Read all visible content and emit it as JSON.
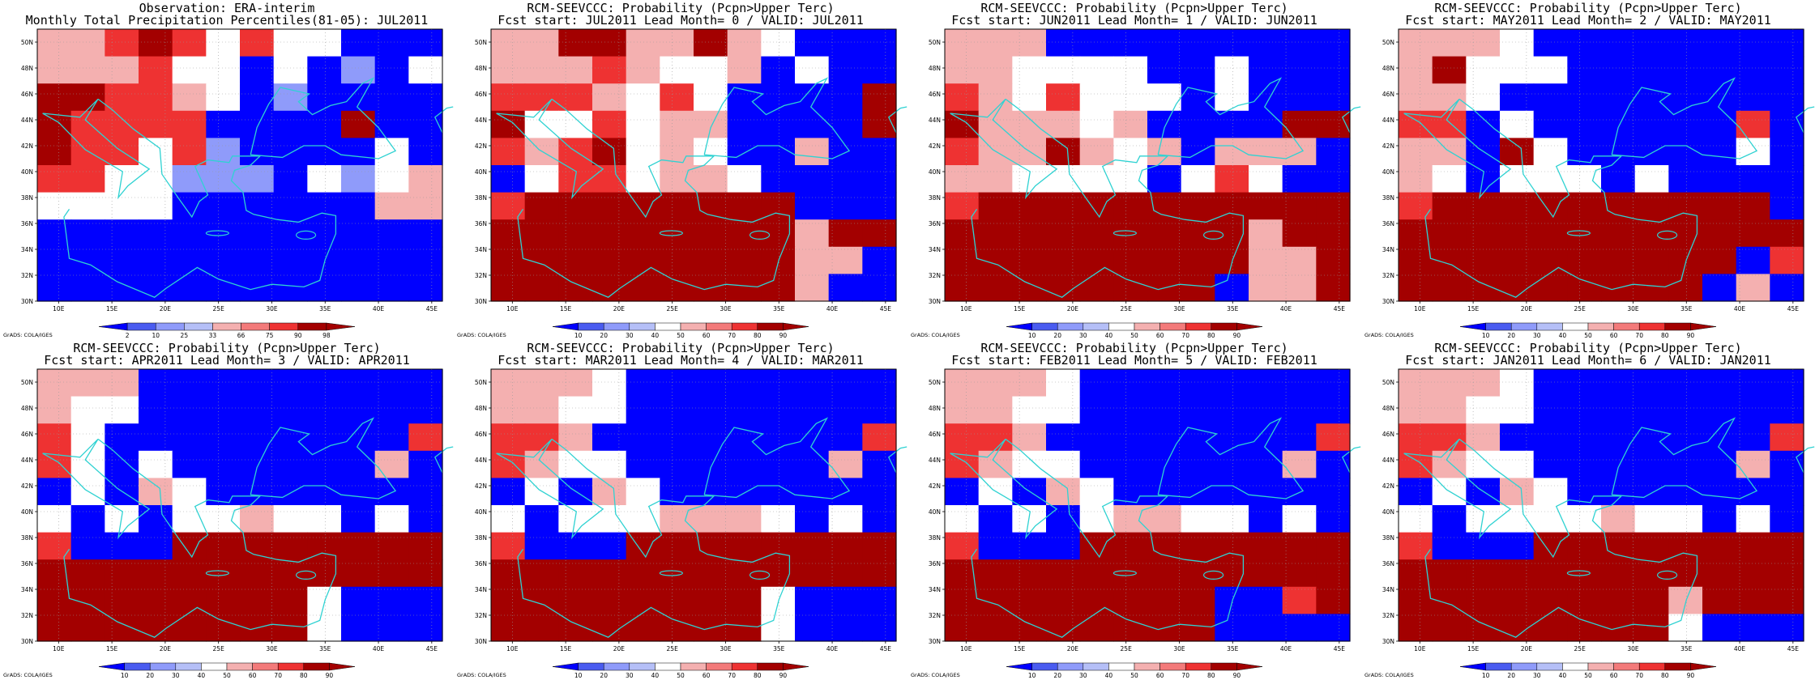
{
  "credit": "GrADS: COLA/IGES",
  "colors": {
    "deep_blue": "#0000ff",
    "mid_blue": "#4a5cf0",
    "light_blue": "#8f9bfa",
    "pale_blue": "#b5bff7",
    "white": "#ffffff",
    "pale_red": "#f4b0b0",
    "light_red": "#f37a7a",
    "red": "#ee3232",
    "dark_red": "#a30000",
    "coast": "#2fd2d2"
  },
  "lon_ticks": [
    "10E",
    "15E",
    "20E",
    "25E",
    "30E",
    "35E",
    "40E",
    "45E"
  ],
  "lat_ticks": [
    "50N",
    "48N",
    "46N",
    "44N",
    "42N",
    "40N",
    "38N",
    "36N",
    "34N",
    "32N",
    "30N"
  ],
  "panels": [
    {
      "title1": "Observation: ERA-interim",
      "title2": "Monthly Total Precipitation Percentiles(81-05): JUL2011",
      "cbar": [
        "2",
        "10",
        "25",
        "33",
        "66",
        "75",
        "90",
        "98"
      ],
      "grid": [
        "hhrdrwrwwbbb",
        "hhhrwwbwbpbw",
        "ddrrhwbpbbbb",
        "drrrrbbbbdbb",
        "drrwrpbbbbwb",
        "rrwwpppbwpwh",
        "wwwwbbbbbbhh",
        "bbbbbbbbbbbb",
        "bbbbbbbbbbbb",
        "bbbbbbbbbbbb"
      ]
    },
    {
      "title1": "RCM-SEEVCCC: Probability (Pcpn>Upper Terc)",
      "title2": "Fcst start: JUL2011  Lead Month= 0 / VALID: JUL2011",
      "cbar": [
        "10",
        "20",
        "30",
        "40",
        "50",
        "60",
        "70",
        "80",
        "90"
      ],
      "grid": [
        "hhdDhhdhwbbb",
        "hhhrhwwhbwbb",
        "rrrhwrwbbbbD",
        "Dwwrwhhbbbbd",
        "rhrdwhwbbhbb",
        "bwrrwhhwbbbb",
        "rDDDDDDDDbbb",
        "DDDDDDDDDhDD",
        "DDDDDDDDDhhb",
        "DDDDDDDDDhbb"
      ]
    },
    {
      "title1": "RCM-SEEVCCC: Probability (Pcpn>Upper Terc)",
      "title2": "Fcst start: JUN2011  Lead Month= 1 / VALID: JUN2011",
      "cbar": [
        "10",
        "20",
        "30",
        "40",
        "50",
        "60",
        "70",
        "80",
        "90"
      ],
      "grid": [
        "hhhbbbbbbbbb",
        "hhwwwwbbwbbb",
        "rhwrwwwbwbbb",
        "DhhhwhbbbbDd",
        "rhhDhwhbhhhb",
        "hhwwwwbwrwbb",
        "rDDDDDDDDDDD",
        "DDDDDDDDDhDD",
        "DDDDDDDDDhhD",
        "DDDDDDDDbhhD"
      ]
    },
    {
      "title1": "RCM-SEEVCCC: Probability (Pcpn>Upper Terc)",
      "title2": "Fcst start: MAY2011  Lead Month= 2 / VALID: MAY2011",
      "cbar": [
        "10",
        "20",
        "30",
        "40",
        "50",
        "60",
        "70",
        "80",
        "90"
      ],
      "grid": [
        "hhhwbbbbbbbb",
        "hdwwwbbbbbbb",
        "hhwbbbbbbbbb",
        "rrbwbbbbbbrb",
        "hhbdwbbbbbwb",
        "hwbwwwbwbbbb",
        "rDDDDDDDDDDb",
        "DDDDDDDDDDDD",
        "DDDDDDDDDDbr",
        "DDDDDDDDDbhb"
      ]
    },
    {
      "title1": "RCM-SEEVCCC: Probability (Pcpn>Upper Terc)",
      "title2": "Fcst start: APR2011  Lead Month= 3 / VALID: APR2011",
      "cbar": [
        "10",
        "20",
        "30",
        "40",
        "50",
        "60",
        "70",
        "80",
        "90"
      ],
      "grid": [
        "hhhbbbbbbbbb",
        "hwwbbbbbbbbb",
        "rwbbbbbbbbbr",
        "rwbwbbbbbbhb",
        "bwbhwbbbbbbb",
        "wbwbwwhwwbwb",
        "rbbbDDDDDDDD",
        "DDDDDDDDDDDD",
        "DDDDDDDDwbbb",
        "DDDDDDDDwbbb"
      ]
    },
    {
      "title1": "RCM-SEEVCCC: Probability (Pcpn>Upper Terc)",
      "title2": "Fcst start: MAR2011  Lead Month= 4 / VALID: MAR2011",
      "cbar": [
        "10",
        "20",
        "30",
        "40",
        "50",
        "60",
        "70",
        "80",
        "90"
      ],
      "grid": [
        "hhhwbbbbbbbb",
        "hhwwbbbbbbbb",
        "rrhbbbbbbbbr",
        "rhwwbbbbbbhb",
        "bwbhwbbbbbbb",
        "wbwwwhhhwbwb",
        "rbbbDDDDDDDD",
        "DDDDDDDDDDDD",
        "DDDDDDDDwbbb",
        "DDDDDDDDwbbb"
      ]
    },
    {
      "title1": "RCM-SEEVCCC: Probability (Pcpn>Upper Terc)",
      "title2": "Fcst start: FEB2011  Lead Month= 5 / VALID: FEB2011",
      "cbar": [
        "10",
        "20",
        "30",
        "40",
        "50",
        "60",
        "70",
        "80",
        "90"
      ],
      "grid": [
        "hhhwbbbbbbbb",
        "hhwwbbbbbbbb",
        "rrhbbbbbbbbr",
        "rhwwbbbbbbhb",
        "bwbhwbbbbbbb",
        "wbwbwhhwwbwb",
        "rbbbDDDDDDDD",
        "DDDDDDDDDDDD",
        "DDDDDDDDbbrD",
        "DDDDDDDDbbbb"
      ]
    },
    {
      "title1": "RCM-SEEVCCC: Probability (Pcpn>Upper Terc)",
      "title2": "Fcst start: JAN2011  Lead Month= 6 / VALID: JAN2011",
      "cbar": [
        "10",
        "20",
        "30",
        "40",
        "50",
        "60",
        "70",
        "80",
        "90"
      ],
      "grid": [
        "hhhwbbbbbbbb",
        "hhwwbbbbbbbb",
        "rrhbbbbbbbbr",
        "rhwwbbbbbbhb",
        "bwbhwbbbbbbb",
        "wbwwwwhwwbwb",
        "rbbbDDDDDDDD",
        "DDDDDDDDDDDD",
        "DDDDDDDDhDDD",
        "DDDDDDDDwbbb"
      ]
    }
  ],
  "chart_data": {
    "type": "heatmap",
    "x_extent": [
      "8E",
      "46E"
    ],
    "y_extent": [
      "30N",
      "51N"
    ],
    "cell_legend": {
      "b": "lowest class (deep blue)",
      "p": "low class (light blue)",
      "w": "middle class (white)",
      "h": "upper class (pale red)",
      "r": "high class (red)",
      "d": "very high class (dark red)",
      "D": "highest class (maroon)"
    }
  }
}
